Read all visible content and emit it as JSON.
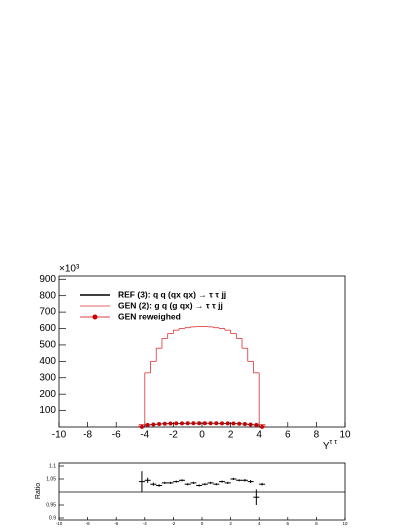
{
  "chart_data": [
    {
      "type": "histogram",
      "y_multiplier_label": "×10³",
      "xlabel": "Y",
      "xlabel_sup": "τ τ",
      "legend_position": "top-left",
      "bins": [
        -4.4,
        -4.0,
        -3.6,
        -3.2,
        -2.8,
        -2.4,
        -2.0,
        -1.6,
        -1.2,
        -0.8,
        -0.4,
        0,
        0.4,
        0.8,
        1.2,
        1.6,
        2.0,
        2.4,
        2.8,
        3.2,
        3.6,
        4.0,
        4.4
      ],
      "series": [
        {
          "name": "REF (3): q q (qx qx) → τ τ jj",
          "color": "#000000",
          "style": "step",
          "values": [
            1,
            12,
            15,
            18,
            20,
            21,
            22,
            22,
            23,
            23,
            23,
            23,
            23,
            23,
            22,
            22,
            21,
            20,
            18,
            15,
            12,
            1
          ]
        },
        {
          "name": "GEN (2): g q (g qx) → τ τ jj",
          "color": "#e03030",
          "style": "step",
          "values": [
            15,
            330,
            400,
            480,
            540,
            570,
            590,
            600,
            605,
            610,
            612,
            612,
            610,
            605,
            600,
            590,
            570,
            540,
            480,
            400,
            330,
            15
          ]
        },
        {
          "name": "GEN reweighed",
          "color": "#cc0000",
          "style": "points",
          "values": [
            1,
            12,
            15,
            18,
            20,
            21,
            22,
            22,
            23,
            23,
            23,
            23,
            23,
            23,
            22,
            22,
            21,
            20,
            18,
            15,
            12,
            1
          ]
        }
      ],
      "xlim": [
        -10,
        10
      ],
      "xticks": [
        -10,
        -8,
        -6,
        -4,
        -2,
        0,
        2,
        4,
        6,
        8,
        10
      ],
      "ylim": [
        0,
        920
      ],
      "yticks": [
        100,
        200,
        300,
        400,
        500,
        600,
        700,
        800,
        900
      ]
    },
    {
      "type": "errorbar",
      "ylabel": "Ratio",
      "x": [
        -4.2,
        -3.8,
        -3.4,
        -3.0,
        -2.6,
        -2.2,
        -1.8,
        -1.4,
        -1.0,
        -0.6,
        -0.2,
        0.2,
        0.6,
        1.0,
        1.4,
        1.8,
        2.2,
        2.6,
        3.0,
        3.4,
        3.8,
        4.2
      ],
      "values": [
        1.04,
        1.045,
        1.03,
        1.025,
        1.035,
        1.035,
        1.04,
        1.045,
        1.03,
        1.035,
        1.025,
        1.03,
        1.035,
        1.03,
        1.04,
        1.035,
        1.05,
        1.045,
        1.045,
        1.04,
        0.98,
        1.03
      ],
      "errors": [
        0.04,
        0.01,
        0.006,
        0.005,
        0.004,
        0.004,
        0.004,
        0.004,
        0.004,
        0.004,
        0.004,
        0.004,
        0.004,
        0.004,
        0.004,
        0.004,
        0.004,
        0.004,
        0.005,
        0.006,
        0.03,
        0.005
      ],
      "hline": 1,
      "xlim": [
        -10,
        10
      ],
      "xticks": [
        -10,
        -8,
        -6,
        -4,
        -2,
        0,
        2,
        4,
        6,
        8,
        10
      ],
      "ylim": [
        0.9,
        1.1
      ],
      "yticks": [
        0.9,
        0.95,
        1.05,
        1.1
      ]
    }
  ]
}
